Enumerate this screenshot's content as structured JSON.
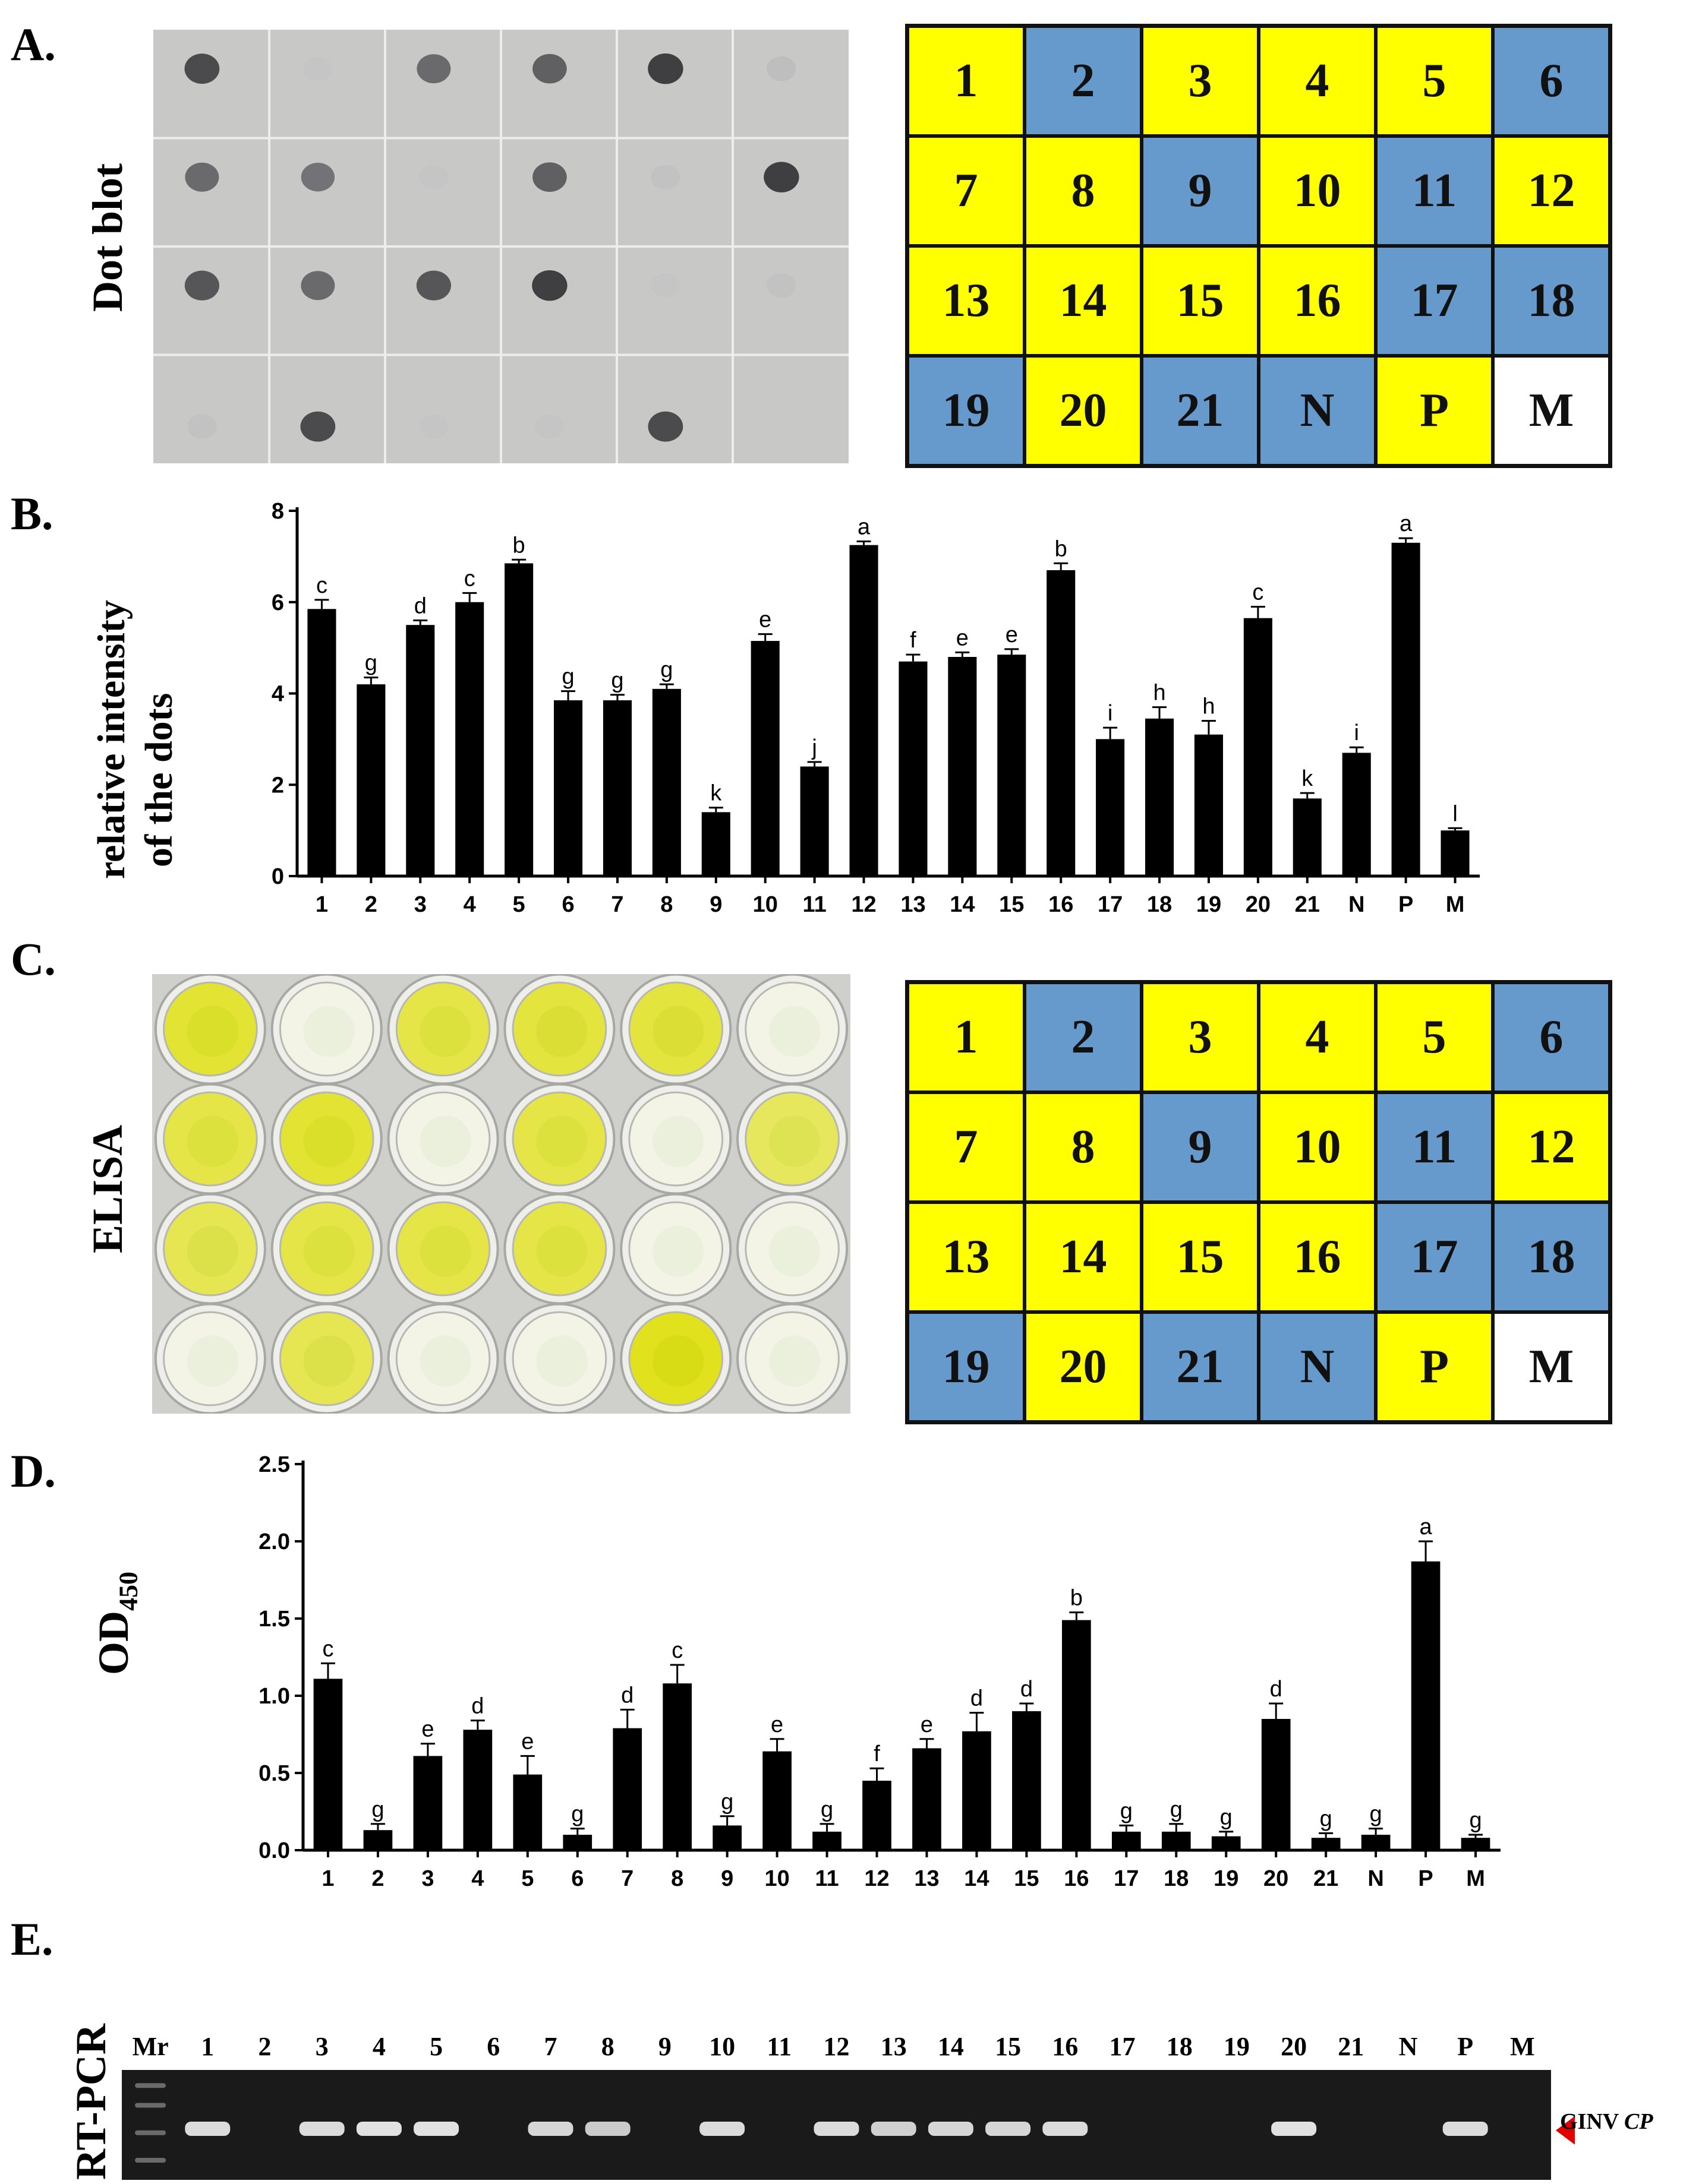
{
  "colors": {
    "positive": "#ffff00",
    "negative": "#6699cc",
    "marker_cell": "#ffffff",
    "arrow": "#e00000"
  },
  "panels": {
    "a": {
      "letter": "A.",
      "side_label": "Dot blot"
    },
    "b": {
      "letter": "B.",
      "ylabel_line1": "relative intensity",
      "ylabel_line2": "of the dots"
    },
    "c": {
      "letter": "C.",
      "side_label": "ELISA"
    },
    "d": {
      "letter": "D.",
      "ylabel": "OD",
      "ylabel_sub": "450"
    },
    "e": {
      "letter": "E.",
      "side_label": "RT-PCR",
      "target_label": "GINV",
      "target_label_italic": "CP"
    }
  },
  "grid": {
    "rows": [
      [
        {
          "label": "1",
          "status": "positive"
        },
        {
          "label": "2",
          "status": "negative"
        },
        {
          "label": "3",
          "status": "positive"
        },
        {
          "label": "4",
          "status": "positive"
        },
        {
          "label": "5",
          "status": "positive"
        },
        {
          "label": "6",
          "status": "negative"
        }
      ],
      [
        {
          "label": "7",
          "status": "positive"
        },
        {
          "label": "8",
          "status": "positive"
        },
        {
          "label": "9",
          "status": "negative"
        },
        {
          "label": "10",
          "status": "positive"
        },
        {
          "label": "11",
          "status": "negative"
        },
        {
          "label": "12",
          "status": "positive"
        }
      ],
      [
        {
          "label": "13",
          "status": "positive"
        },
        {
          "label": "14",
          "status": "positive"
        },
        {
          "label": "15",
          "status": "positive"
        },
        {
          "label": "16",
          "status": "positive"
        },
        {
          "label": "17",
          "status": "negative"
        },
        {
          "label": "18",
          "status": "negative"
        }
      ],
      [
        {
          "label": "19",
          "status": "negative"
        },
        {
          "label": "20",
          "status": "positive"
        },
        {
          "label": "21",
          "status": "negative"
        },
        {
          "label": "N",
          "status": "negative"
        },
        {
          "label": "P",
          "status": "positive"
        },
        {
          "label": "M",
          "status": "marker"
        }
      ]
    ]
  },
  "dot_blot": [
    [
      0.9,
      0.05,
      0.75,
      0.8,
      0.95,
      0.15
    ],
    [
      0.75,
      0.7,
      0.05,
      0.8,
      0.1,
      0.95
    ],
    [
      0.85,
      0.75,
      0.85,
      0.95,
      0.05,
      0.1
    ],
    [
      0.1,
      0.9,
      0.05,
      0.05,
      0.9,
      0.0
    ]
  ],
  "elisa_wells": [
    [
      0.9,
      0.05,
      0.8,
      0.85,
      0.85,
      0.05
    ],
    [
      0.8,
      0.9,
      0.05,
      0.8,
      0.05,
      0.7
    ],
    [
      0.75,
      0.8,
      0.8,
      0.8,
      0.05,
      0.05
    ],
    [
      0.05,
      0.75,
      0.05,
      0.05,
      1.0,
      0.05
    ]
  ],
  "gel": {
    "lanes": [
      "Mr",
      "1",
      "2",
      "3",
      "4",
      "5",
      "6",
      "7",
      "8",
      "9",
      "10",
      "11",
      "12",
      "13",
      "14",
      "15",
      "16",
      "17",
      "18",
      "19",
      "20",
      "21",
      "N",
      "P",
      "M"
    ],
    "band_intensity": [
      0,
      0.9,
      0,
      0.9,
      0.95,
      0.95,
      0,
      0.85,
      0.75,
      0,
      0.9,
      0,
      0.9,
      0.8,
      0.85,
      0.85,
      0.9,
      0,
      0,
      0,
      0.95,
      0,
      0,
      0.9,
      0
    ]
  },
  "chart_data": [
    {
      "type": "bar",
      "title": "",
      "xlabel": "",
      "ylabel": "relative intensity of the dots",
      "categories": [
        "1",
        "2",
        "3",
        "4",
        "5",
        "6",
        "7",
        "8",
        "9",
        "10",
        "11",
        "12",
        "13",
        "14",
        "15",
        "16",
        "17",
        "18",
        "19",
        "20",
        "21",
        "N",
        "P",
        "M"
      ],
      "values": [
        5.85,
        4.2,
        5.5,
        6.0,
        6.85,
        3.85,
        3.85,
        4.1,
        1.4,
        5.15,
        2.4,
        7.25,
        4.7,
        4.8,
        4.85,
        6.7,
        3.0,
        3.45,
        3.1,
        5.65,
        1.7,
        2.7,
        7.3,
        1.0
      ],
      "errors": [
        0.2,
        0.15,
        0.1,
        0.2,
        0.08,
        0.2,
        0.12,
        0.1,
        0.1,
        0.15,
        0.1,
        0.08,
        0.15,
        0.1,
        0.12,
        0.15,
        0.25,
        0.25,
        0.3,
        0.25,
        0.12,
        0.12,
        0.1,
        0.05
      ],
      "letters": [
        "c",
        "g",
        "d",
        "c",
        "b",
        "g",
        "g",
        "g",
        "k",
        "e",
        "j",
        "a",
        "f",
        "e",
        "e",
        "b",
        "i",
        "h",
        "h",
        "c",
        "k",
        "i",
        "a",
        "l"
      ],
      "yticks": [
        "0",
        "2",
        "4",
        "6",
        "8"
      ],
      "ylim": [
        0,
        8
      ]
    },
    {
      "type": "bar",
      "title": "",
      "xlabel": "",
      "ylabel": "OD450",
      "categories": [
        "1",
        "2",
        "3",
        "4",
        "5",
        "6",
        "7",
        "8",
        "9",
        "10",
        "11",
        "12",
        "13",
        "14",
        "15",
        "16",
        "17",
        "18",
        "19",
        "20",
        "21",
        "N",
        "P",
        "M"
      ],
      "values": [
        1.11,
        0.13,
        0.61,
        0.78,
        0.49,
        0.1,
        0.79,
        1.08,
        0.16,
        0.64,
        0.12,
        0.45,
        0.66,
        0.77,
        0.9,
        1.49,
        0.12,
        0.12,
        0.09,
        0.85,
        0.08,
        0.1,
        1.87,
        0.08
      ],
      "errors": [
        0.1,
        0.04,
        0.08,
        0.06,
        0.12,
        0.04,
        0.12,
        0.12,
        0.06,
        0.08,
        0.05,
        0.08,
        0.06,
        0.12,
        0.05,
        0.05,
        0.04,
        0.05,
        0.03,
        0.1,
        0.03,
        0.04,
        0.13,
        0.02
      ],
      "letters": [
        "c",
        "g",
        "e",
        "d",
        "e",
        "g",
        "d",
        "c",
        "g",
        "e",
        "g",
        "f",
        "e",
        "d",
        "d",
        "b",
        "g",
        "g",
        "g",
        "d",
        "g",
        "g",
        "a",
        "g"
      ],
      "yticks": [
        "0.0",
        "0.5",
        "1.0",
        "1.5",
        "2.0",
        "2.5"
      ],
      "ylim": [
        0,
        2.5
      ]
    }
  ]
}
